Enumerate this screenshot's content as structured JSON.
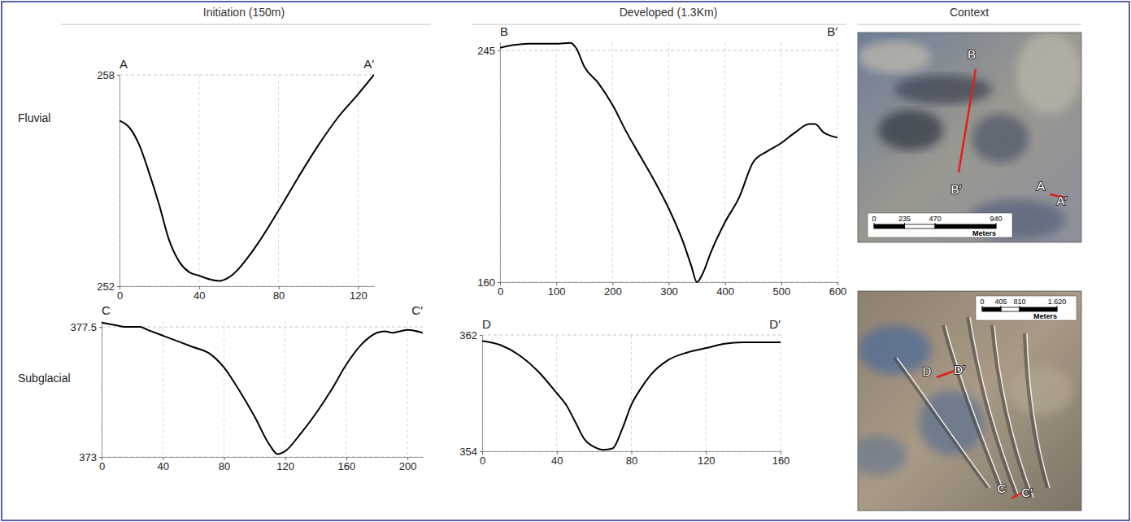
{
  "column_headers": [
    "Initiation (150m)",
    "Developed (1.3Km)",
    "Context"
  ],
  "row_labels": [
    "Fluvial",
    "Subglacial"
  ],
  "chart_data": [
    {
      "type": "line",
      "annotations": [
        "A",
        "A′"
      ],
      "x": [
        0,
        5,
        10,
        15,
        20,
        25,
        30,
        35,
        40,
        45,
        50,
        55,
        60,
        65,
        70,
        80,
        90,
        100,
        110,
        120,
        128
      ],
      "values": [
        256.7,
        256.5,
        256.0,
        255.2,
        254.3,
        253.3,
        252.7,
        252.4,
        252.3,
        252.2,
        252.15,
        252.25,
        252.5,
        252.85,
        253.25,
        254.15,
        255.1,
        256.0,
        256.8,
        257.45,
        258.0
      ],
      "color": "#000000",
      "xlim": [
        0,
        128
      ],
      "ylim": [
        252,
        258
      ],
      "xticks": [
        0,
        40,
        80,
        120
      ],
      "yticks": [
        252,
        258
      ],
      "grid": true
    },
    {
      "type": "line",
      "annotations": [
        "B",
        "B′"
      ],
      "x": [
        0,
        25,
        50,
        100,
        125,
        135,
        150,
        175,
        200,
        225,
        250,
        275,
        300,
        325,
        340,
        350,
        360,
        375,
        400,
        425,
        450,
        475,
        500,
        525,
        550,
        560,
        575,
        600
      ],
      "values": [
        246,
        247,
        247.5,
        247.5,
        247.8,
        246,
        239,
        233,
        225,
        215,
        206,
        197,
        187,
        175,
        166,
        160,
        163,
        171,
        182,
        191,
        204,
        208,
        211,
        215,
        218,
        218,
        215,
        213
      ],
      "color": "#000000",
      "xlim": [
        0,
        600
      ],
      "ylim": [
        160,
        248
      ],
      "xticks": [
        0,
        100,
        200,
        300,
        400,
        500,
        600
      ],
      "yticks": [
        160,
        245
      ],
      "grid": true
    },
    {
      "type": "line",
      "annotations": [
        "C",
        "C′"
      ],
      "x": [
        0,
        10,
        15,
        25,
        30,
        40,
        50,
        60,
        70,
        80,
        90,
        100,
        110,
        115,
        120,
        130,
        140,
        150,
        160,
        170,
        180,
        185,
        190,
        195,
        200,
        210
      ],
      "values": [
        377.65,
        377.55,
        377.5,
        377.5,
        377.4,
        377.2,
        377.0,
        376.8,
        376.6,
        376.1,
        375.3,
        374.4,
        373.4,
        373.1,
        373.2,
        373.8,
        374.5,
        375.3,
        376.2,
        376.9,
        377.3,
        377.35,
        377.3,
        377.35,
        377.4,
        377.3
      ],
      "color": "#000000",
      "xlim": [
        0,
        210
      ],
      "ylim": [
        373,
        377.7
      ],
      "xticks": [
        0,
        40,
        80,
        120,
        160,
        200
      ],
      "yticks": [
        373,
        377.5
      ],
      "grid": true
    },
    {
      "type": "line",
      "annotations": [
        "D",
        "D′"
      ],
      "x": [
        0,
        10,
        20,
        30,
        40,
        45,
        50,
        55,
        60,
        65,
        70,
        75,
        80,
        85,
        90,
        100,
        110,
        120,
        130,
        140,
        160
      ],
      "values": [
        361.6,
        361.3,
        360.6,
        359.5,
        358.0,
        357.2,
        356.0,
        354.8,
        354.3,
        354.1,
        354.2,
        355.5,
        357.2,
        358.3,
        359.2,
        360.3,
        360.8,
        361.1,
        361.4,
        361.5,
        361.5
      ],
      "color": "#000000",
      "xlim": [
        0,
        160
      ],
      "ylim": [
        354,
        362
      ],
      "xticks": [
        0,
        40,
        80,
        120,
        160
      ],
      "yticks": [
        354,
        362
      ],
      "grid": true
    }
  ],
  "context_maps": [
    {
      "labels": [
        "B",
        "B′",
        "A",
        "A′"
      ],
      "scale_bar": {
        "ticks": [
          0,
          235,
          470,
          940
        ],
        "unit": "Meters"
      }
    },
    {
      "labels": [
        "D",
        "D′",
        "C",
        "C′"
      ],
      "scale_bar": {
        "ticks": [
          0,
          405,
          810,
          {
            "value": 1620,
            "label": "1.620"
          }
        ],
        "unit": "Meters"
      }
    }
  ]
}
